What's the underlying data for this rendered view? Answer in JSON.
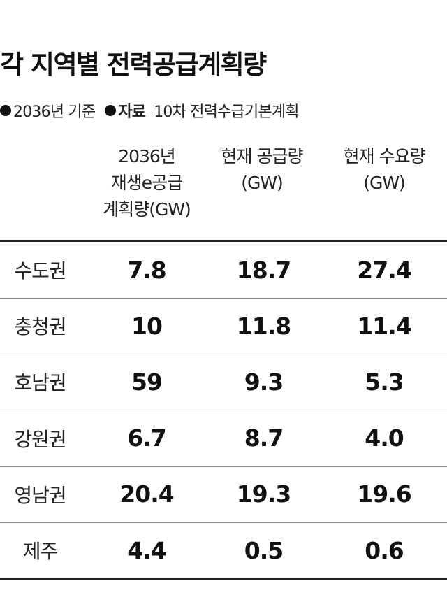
{
  "title": "각 지역별 전력공급계획량",
  "meta": {
    "basis": "2036년 기준",
    "source_label": "자료",
    "source": "10차 전력수급기본계획"
  },
  "headers": {
    "col1": "2036년\n재생e공급\n계획량(GW)",
    "col2": "현재 공급량\n(GW)",
    "col3": "현재 수요량\n(GW)"
  },
  "chart_data": {
    "type": "table",
    "title": "각 지역별 전력공급계획량",
    "columns": [
      "2036년 재생e공급 계획량(GW)",
      "현재 공급량 (GW)",
      "현재 수요량 (GW)"
    ],
    "rows": [
      {
        "region": "수도권",
        "values": [
          "7.8",
          "18.7",
          "27.4"
        ]
      },
      {
        "region": "충청권",
        "values": [
          "10",
          "11.8",
          "11.4"
        ]
      },
      {
        "region": "호남권",
        "values": [
          "59",
          "9.3",
          "5.3"
        ]
      },
      {
        "region": "강원권",
        "values": [
          "6.7",
          "8.7",
          "4.0"
        ]
      },
      {
        "region": "영남권",
        "values": [
          "20.4",
          "19.3",
          "19.6"
        ]
      },
      {
        "region": "제주",
        "values": [
          "4.4",
          "0.5",
          "0.6"
        ]
      }
    ]
  }
}
